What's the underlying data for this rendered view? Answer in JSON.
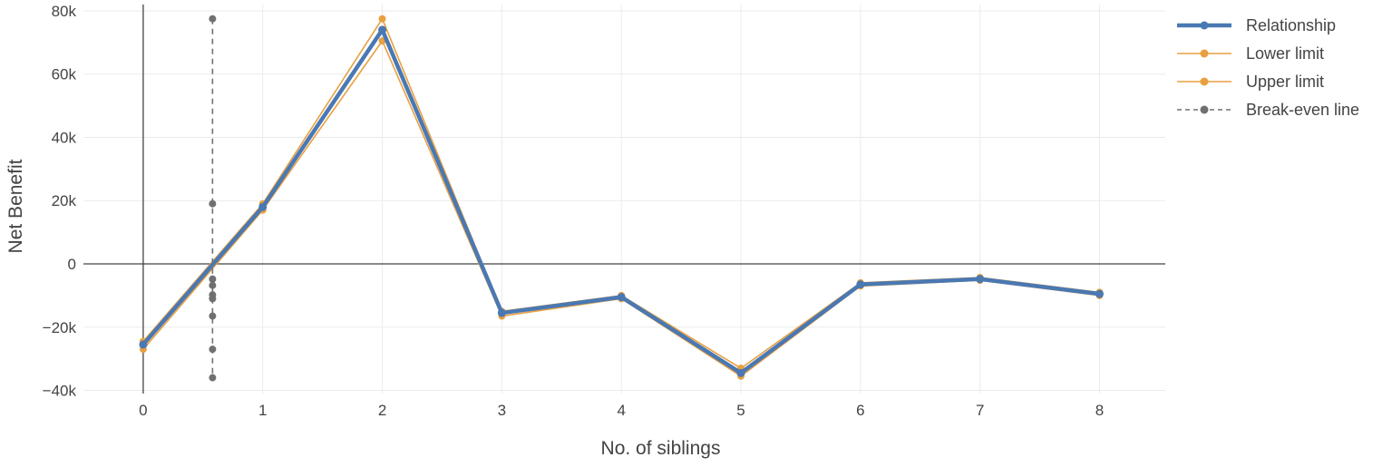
{
  "chart_data": {
    "type": "line",
    "xlabel": "No. of siblings",
    "ylabel": "Net Benefit",
    "xlim": [
      -0.5,
      8.55
    ],
    "ylim": [
      -41000,
      82000
    ],
    "x_ticks": [
      0,
      1,
      2,
      3,
      4,
      5,
      6,
      7,
      8
    ],
    "x_tick_labels": [
      "0",
      "1",
      "2",
      "3",
      "4",
      "5",
      "6",
      "7",
      "8"
    ],
    "y_ticks": [
      -40000,
      -20000,
      0,
      20000,
      40000,
      60000,
      80000
    ],
    "y_tick_labels": [
      "−40k",
      "−20k",
      "0",
      "20k",
      "40k",
      "60k",
      "80k"
    ],
    "grid": true,
    "legend_position": "top-right",
    "series": [
      {
        "name": "Relationship",
        "color": "#4a78b3",
        "dash": "solid",
        "x": [
          0,
          1,
          2,
          3,
          4,
          5,
          6,
          7,
          8
        ],
        "y": [
          -25500,
          18000,
          74000,
          -15500,
          -10500,
          -34500,
          -6500,
          -4800,
          -9500
        ]
      },
      {
        "name": "Lower limit",
        "color": "#e8a040",
        "dash": "solid",
        "x": [
          0,
          1,
          2,
          3,
          4,
          5,
          6,
          7,
          8
        ],
        "y": [
          -27000,
          17000,
          70500,
          -16500,
          -11000,
          -35500,
          -7000,
          -5200,
          -10000
        ]
      },
      {
        "name": "Upper limit",
        "color": "#e8a040",
        "dash": "solid",
        "x": [
          0,
          1,
          2,
          3,
          4,
          5,
          6,
          7,
          8
        ],
        "y": [
          -24500,
          19000,
          77500,
          -15000,
          -10000,
          -33000,
          -6000,
          -4300,
          -9000
        ]
      },
      {
        "name": "Break-even line",
        "color": "#707070",
        "dash": "dash",
        "x": [
          0.58,
          0.58,
          0.58,
          0.58,
          0.58,
          0.58,
          0.58,
          0.58,
          0.58
        ],
        "y": [
          77500,
          19000,
          -4800,
          -6800,
          -9800,
          -11000,
          -16500,
          -27000,
          -36000
        ]
      }
    ]
  }
}
